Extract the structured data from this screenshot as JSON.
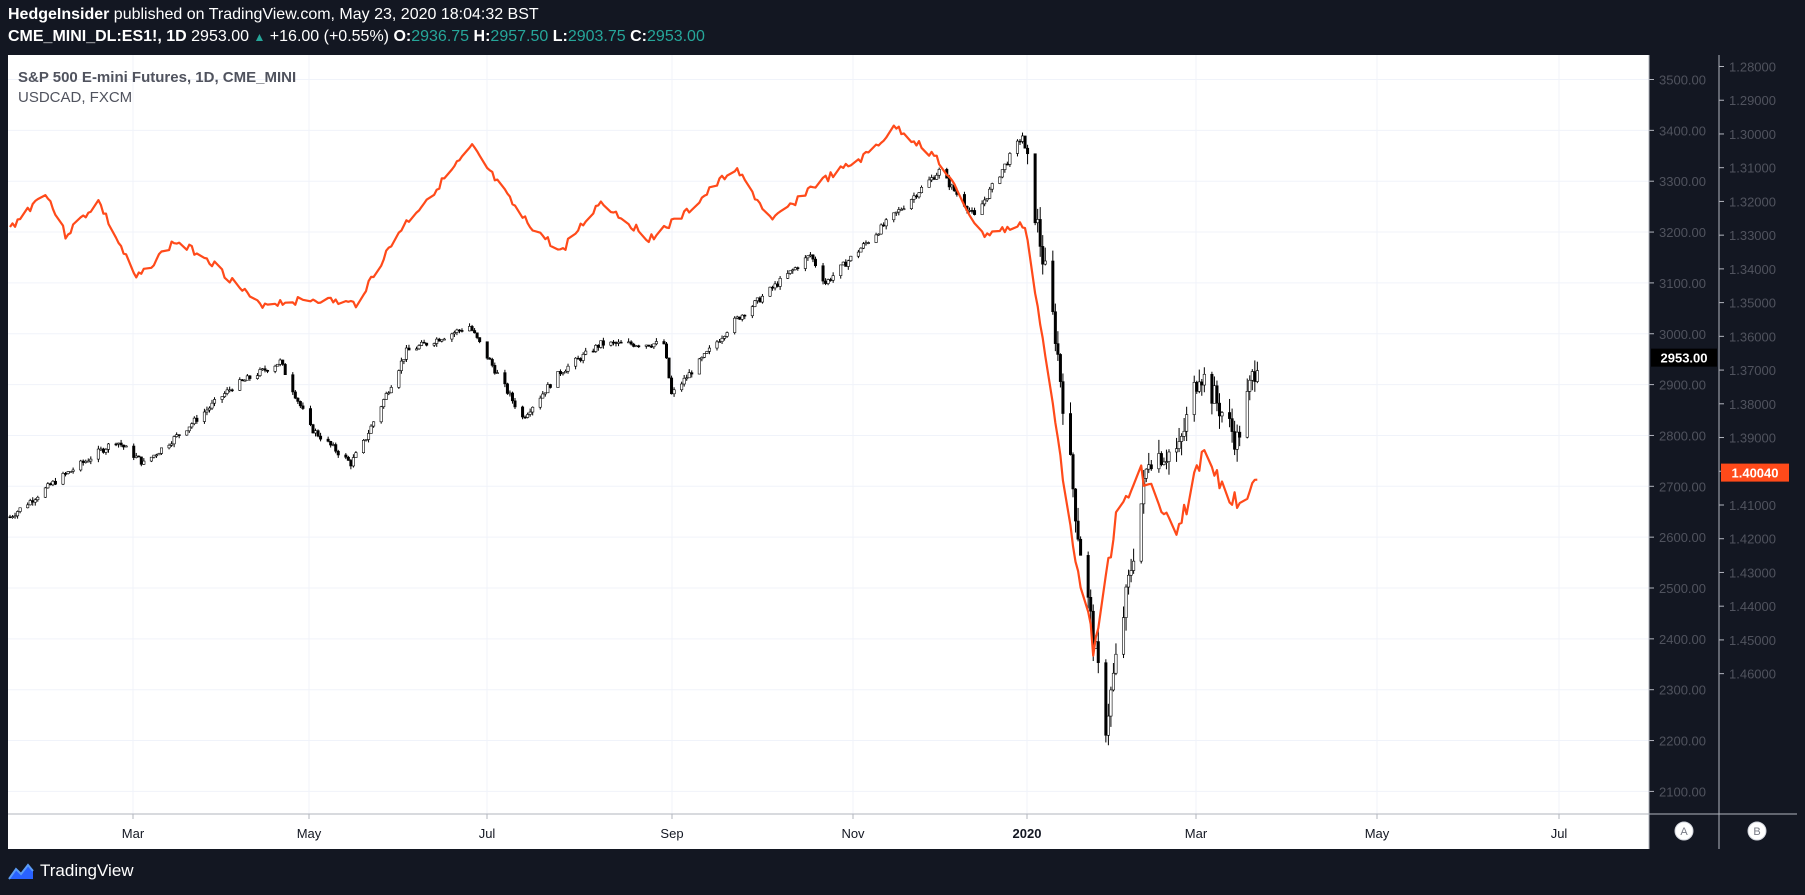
{
  "header": {
    "publisher_name": "HedgeInsider",
    "publisher_rest": " published on TradingView.com, May 23, 2020 18:04:32 BST",
    "symbol": "CME_MINI_DL:ES1!, 1D",
    "last_price": "2953.00",
    "change": "+16.00 (+0.55%)",
    "o_label": "O:",
    "o_value": "2936.75",
    "h_label": "H:",
    "h_value": "2957.50",
    "l_label": "L:",
    "l_value": "2903.75",
    "c_label": "C:",
    "c_value": "2953.00"
  },
  "legend": {
    "main_series": "S&P 500 E-mini Futures, 1D, CME_MINI",
    "overlay_series": "USDCAD, FXCM"
  },
  "footer": {
    "brand": "TradingView"
  },
  "colors": {
    "background": "#131722",
    "chart_bg": "#ffffff",
    "usdcad_line": "#ff4a1a",
    "candle": "#000000",
    "price_tag": "#000000",
    "teal": "#26a69a"
  },
  "chart_data": {
    "type": "line",
    "x_axis": {
      "labels": [
        "Mar",
        "May",
        "Jul",
        "Sep",
        "Nov",
        "2020",
        "Mar",
        "May",
        "Jul"
      ],
      "bold": [
        "2020"
      ]
    },
    "left_scale": {
      "name": "ES1!",
      "ticks": [
        "3500.00",
        "3400.00",
        "3300.00",
        "3200.00",
        "3100.00",
        "3000.00",
        "2900.00",
        "2800.00",
        "2700.00",
        "2600.00",
        "2500.00",
        "2400.00",
        "2300.00",
        "2200.00",
        "2100.00"
      ],
      "current_value": "2953.00",
      "range": [
        2055,
        3545
      ]
    },
    "right_scale": {
      "name": "USDCAD",
      "ticks": [
        "1.28000",
        "1.29000",
        "1.30000",
        "1.31000",
        "1.32000",
        "1.33000",
        "1.34000",
        "1.35000",
        "1.36000",
        "1.37000",
        "1.38000",
        "1.39000",
        "1.40000",
        "1.41000",
        "1.42000",
        "1.43000",
        "1.44000",
        "1.45000",
        "1.46000"
      ],
      "current_value": "1.40040",
      "inverted": true
    },
    "scale_buttons": [
      "A",
      "B"
    ],
    "grid": true,
    "series": [
      {
        "name": "S&P 500 E-mini Futures, 1D, CME_MINI",
        "style": "candles",
        "x": [
          "2019-01-14",
          "2019-02-01",
          "2019-02-25",
          "2019-03-08",
          "2019-03-25",
          "2019-04-12",
          "2019-05-01",
          "2019-05-13",
          "2019-05-29",
          "2019-06-03",
          "2019-06-20",
          "2019-07-15",
          "2019-08-05",
          "2019-08-20",
          "2019-09-05",
          "2019-09-30",
          "2019-10-03",
          "2019-10-28",
          "2019-11-27",
          "2019-12-03",
          "2020-01-17",
          "2020-01-31",
          "2020-02-19",
          "2020-03-03",
          "2020-03-12",
          "2020-03-23",
          "2020-04-09",
          "2020-04-21",
          "2020-04-29",
          "2020-05-14",
          "2020-05-22"
        ],
        "values": [
          2640,
          2710,
          2790,
          2745,
          2815,
          2895,
          2945,
          2815,
          2745,
          2785,
          2965,
          3015,
          2835,
          2925,
          2980,
          2980,
          2880,
          3025,
          3155,
          3100,
          3320,
          3230,
          3390,
          3000,
          2610,
          2230,
          2760,
          2770,
          2930,
          2790,
          2953
        ]
      },
      {
        "name": "USDCAD, FXCM",
        "style": "line",
        "x": [
          "2019-01-14",
          "2019-01-28",
          "2019-02-05",
          "2019-02-18",
          "2019-03-05",
          "2019-03-20",
          "2019-04-01",
          "2019-04-22",
          "2019-05-15",
          "2019-05-31",
          "2019-06-18",
          "2019-07-16",
          "2019-08-05",
          "2019-08-20",
          "2019-09-05",
          "2019-09-24",
          "2019-10-08",
          "2019-10-28",
          "2019-11-12",
          "2019-11-27",
          "2019-12-18",
          "2019-12-31",
          "2020-01-16",
          "2020-02-03",
          "2020-02-20",
          "2020-03-10",
          "2020-03-18",
          "2020-03-27",
          "2020-04-06",
          "2020-04-20",
          "2020-04-30",
          "2020-05-14",
          "2020-05-22"
        ],
        "values": [
          1.328,
          1.317,
          1.33,
          1.32,
          1.343,
          1.332,
          1.336,
          1.3505,
          1.349,
          1.3505,
          1.328,
          1.304,
          1.325,
          1.335,
          1.32,
          1.331,
          1.324,
          1.31,
          1.326,
          1.316,
          1.307,
          1.298,
          1.307,
          1.33,
          1.327,
          1.42,
          1.452,
          1.415,
          1.4,
          1.42,
          1.395,
          1.41,
          1.4004
        ]
      }
    ]
  }
}
